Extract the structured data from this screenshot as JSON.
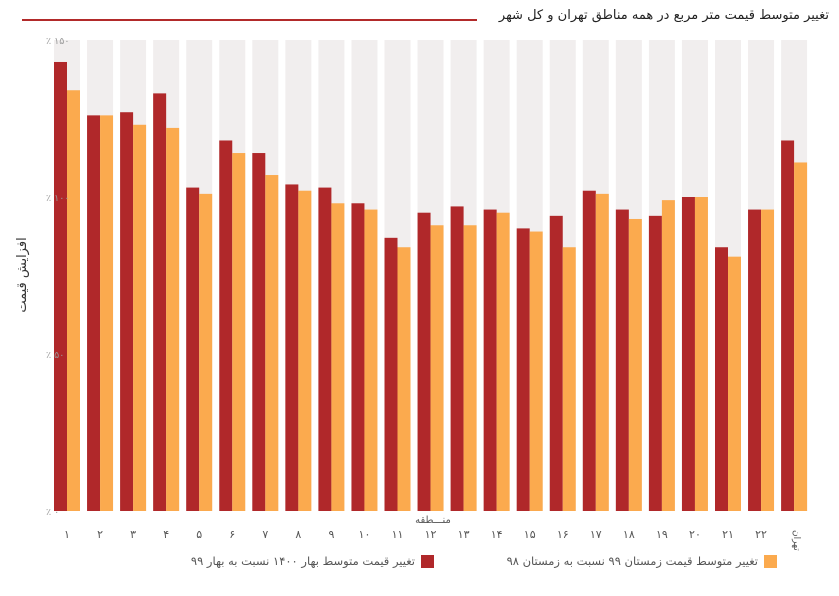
{
  "title": "تغییر متوسط قیمت متر مربع در همه مناطق تهران و کل شهر",
  "chart_data": {
    "type": "bar",
    "ylabel": "افزایش قیمت",
    "xlabel": "منـــطقه",
    "ylim": [
      0,
      150
    ],
    "yticks": [
      "۰ ٪",
      "۵۰ ٪",
      "۱۰۰ ٪",
      "۱۵۰ ٪"
    ],
    "ytick_values": [
      0,
      50,
      100,
      150
    ],
    "categories": [
      "۱",
      "۲",
      "۳",
      "۴",
      "۵",
      "۶",
      "۷",
      "۸",
      "۹",
      "۱۰",
      "۱۱",
      "۱۲",
      "۱۳",
      "۱۴",
      "۱۵",
      "۱۶",
      "۱۷",
      "۱۸",
      "۱۹",
      "۲۰",
      "۲۱",
      "۲۲",
      "کل تهران"
    ],
    "series": [
      {
        "name": "تغییر قیمت متوسط بهار ۱۴۰۰ نسبت به بهار ۹۹",
        "color": "#b0282a",
        "values": [
          143,
          126,
          127,
          133,
          103,
          118,
          114,
          104,
          103,
          98,
          87,
          95,
          97,
          96,
          90,
          94,
          102,
          96,
          94,
          100,
          84,
          96,
          118
        ]
      },
      {
        "name": "تغییر متوسط قیمت زمستان ۹۹ نسبت به زمستان ۹۸",
        "color": "#fbaa4e",
        "values": [
          134,
          126,
          123,
          122,
          101,
          114,
          107,
          102,
          98,
          96,
          84,
          91,
          91,
          95,
          89,
          84,
          101,
          93,
          99,
          100,
          81,
          96,
          111
        ]
      }
    ],
    "background_bar_color": "#f1eeee",
    "grid": false
  }
}
